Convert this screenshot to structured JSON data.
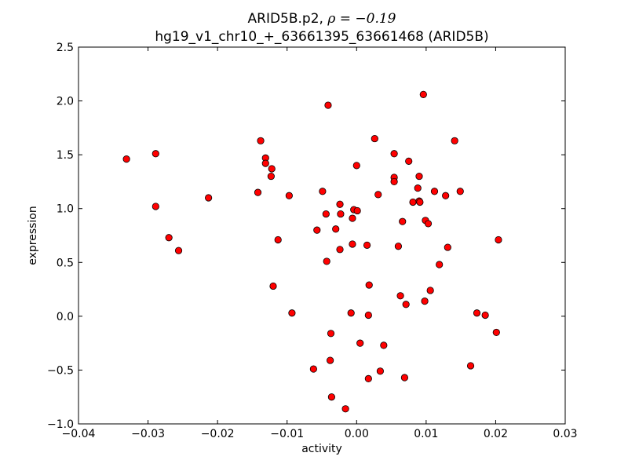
{
  "chart_data": {
    "type": "scatter",
    "title_prefix": "ARID5B.p2, ",
    "title_rho": "ρ = −0.19",
    "title_line2": "hg19_v1_chr10_+_63661395_63661468 (ARID5B)",
    "xlabel": "activity",
    "ylabel": "expression",
    "xlim": [
      -0.04,
      0.03
    ],
    "ylim": [
      -1.0,
      2.5
    ],
    "xticks": [
      -0.04,
      -0.03,
      -0.02,
      -0.01,
      0.0,
      0.01,
      0.02,
      0.03
    ],
    "xtick_labels": [
      "−0.04",
      "−0.03",
      "−0.02",
      "−0.01",
      "0.00",
      "0.01",
      "0.02",
      "0.03"
    ],
    "yticks": [
      -1.0,
      -0.5,
      0.0,
      0.5,
      1.0,
      1.5,
      2.0,
      2.5
    ],
    "ytick_labels": [
      "−1.0",
      "−0.5",
      "0.0",
      "0.5",
      "1.0",
      "1.5",
      "2.0",
      "2.5"
    ],
    "grid": false,
    "marker_color": "#ff0000",
    "marker_edge": "#000000",
    "points": [
      {
        "x": -0.0331,
        "y": 1.46
      },
      {
        "x": -0.0289,
        "y": 1.51
      },
      {
        "x": -0.0289,
        "y": 1.02
      },
      {
        "x": -0.027,
        "y": 0.73
      },
      {
        "x": -0.0256,
        "y": 0.61
      },
      {
        "x": -0.0213,
        "y": 1.1
      },
      {
        "x": -0.0142,
        "y": 1.15
      },
      {
        "x": -0.0138,
        "y": 1.63
      },
      {
        "x": -0.0131,
        "y": 1.47
      },
      {
        "x": -0.0131,
        "y": 1.42
      },
      {
        "x": -0.0122,
        "y": 1.37
      },
      {
        "x": -0.0123,
        "y": 1.3
      },
      {
        "x": -0.012,
        "y": 0.28
      },
      {
        "x": -0.0113,
        "y": 0.71
      },
      {
        "x": -0.0097,
        "y": 1.12
      },
      {
        "x": -0.0093,
        "y": 0.03
      },
      {
        "x": -0.0062,
        "y": -0.49
      },
      {
        "x": -0.0057,
        "y": 0.8
      },
      {
        "x": -0.0049,
        "y": 1.16
      },
      {
        "x": -0.0044,
        "y": 0.95
      },
      {
        "x": -0.0043,
        "y": 0.51
      },
      {
        "x": -0.0041,
        "y": 1.96
      },
      {
        "x": -0.0037,
        "y": -0.16
      },
      {
        "x": -0.0038,
        "y": -0.41
      },
      {
        "x": -0.0036,
        "y": -0.75
      },
      {
        "x": -0.003,
        "y": 0.81
      },
      {
        "x": -0.0024,
        "y": 1.04
      },
      {
        "x": -0.0023,
        "y": 0.95
      },
      {
        "x": -0.0024,
        "y": 0.62
      },
      {
        "x": -0.0016,
        "y": -0.86
      },
      {
        "x": -0.0008,
        "y": 0.03
      },
      {
        "x": -0.0006,
        "y": 0.91
      },
      {
        "x": -0.0006,
        "y": 0.67
      },
      {
        "x": -0.0004,
        "y": 0.99
      },
      {
        "x": 0.0001,
        "y": 0.98
      },
      {
        "x": 0.0,
        "y": 1.4
      },
      {
        "x": 0.0005,
        "y": -0.25
      },
      {
        "x": 0.0015,
        "y": 0.66
      },
      {
        "x": 0.0017,
        "y": 0.01
      },
      {
        "x": 0.0017,
        "y": -0.58
      },
      {
        "x": 0.0018,
        "y": 0.29
      },
      {
        "x": 0.0026,
        "y": 1.65
      },
      {
        "x": 0.0031,
        "y": 1.13
      },
      {
        "x": 0.0034,
        "y": -0.51
      },
      {
        "x": 0.0039,
        "y": -0.27
      },
      {
        "x": 0.0054,
        "y": 1.51
      },
      {
        "x": 0.0054,
        "y": 1.29
      },
      {
        "x": 0.0054,
        "y": 1.25
      },
      {
        "x": 0.006,
        "y": 0.65
      },
      {
        "x": 0.0063,
        "y": 0.19
      },
      {
        "x": 0.0066,
        "y": 0.88
      },
      {
        "x": 0.0069,
        "y": -0.57
      },
      {
        "x": 0.0071,
        "y": 0.11
      },
      {
        "x": 0.0075,
        "y": 1.44
      },
      {
        "x": 0.0081,
        "y": 1.06
      },
      {
        "x": 0.0088,
        "y": 1.19
      },
      {
        "x": 0.009,
        "y": 1.07
      },
      {
        "x": 0.009,
        "y": 1.3
      },
      {
        "x": 0.0091,
        "y": 1.06
      },
      {
        "x": 0.0096,
        "y": 2.06
      },
      {
        "x": 0.0098,
        "y": 0.14
      },
      {
        "x": 0.0099,
        "y": 0.89
      },
      {
        "x": 0.0103,
        "y": 0.86
      },
      {
        "x": 0.0106,
        "y": 0.24
      },
      {
        "x": 0.0112,
        "y": 1.16
      },
      {
        "x": 0.0119,
        "y": 0.48
      },
      {
        "x": 0.0128,
        "y": 1.12
      },
      {
        "x": 0.0131,
        "y": 0.64
      },
      {
        "x": 0.0141,
        "y": 1.63
      },
      {
        "x": 0.0149,
        "y": 1.16
      },
      {
        "x": 0.0164,
        "y": -0.46
      },
      {
        "x": 0.0173,
        "y": 0.03
      },
      {
        "x": 0.0185,
        "y": 0.01
      },
      {
        "x": 0.0201,
        "y": -0.15
      },
      {
        "x": 0.0204,
        "y": 0.71
      }
    ]
  }
}
